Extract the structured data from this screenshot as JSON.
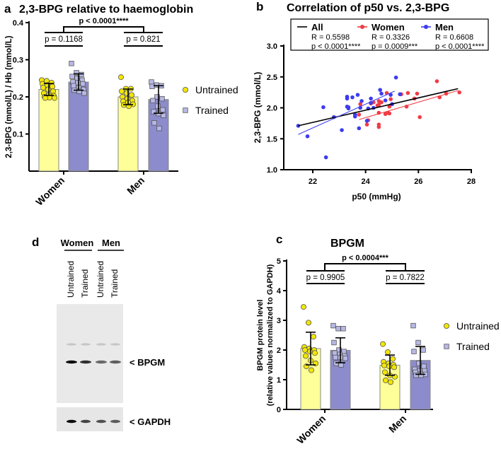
{
  "panels": {
    "a": {
      "letter": "a",
      "title": "2,3-BPG relative to haemoglobin"
    },
    "b": {
      "letter": "b",
      "title": "Correlation of p50 vs. 2,3-BPG"
    },
    "c": {
      "letter": "c"
    },
    "d": {
      "letter": "d",
      "groups": [
        "Women",
        "Men"
      ],
      "lanes": [
        "Untrained",
        "Trained",
        "Untrained",
        "Trained"
      ],
      "band_labels": [
        "< BPGM",
        "< GAPDH"
      ]
    }
  },
  "colors": {
    "untrained": "#ffff99",
    "untrained_dot": "#f2e600",
    "trained": "#8c8ccc",
    "trained_dot": "#b8b8e6",
    "women": "#f03c46",
    "men": "#3c3cf0",
    "all": "#000000"
  },
  "chart_data": [
    {
      "type": "bar",
      "title": "2,3-BPG relative to haemoglobin",
      "ylabel": "2,3-BPG (mmol/L) / Hb (mmol/L)",
      "ylim": [
        0,
        0.4
      ],
      "yticks": [
        "0.1",
        "0.2",
        "0.3",
        "0.4"
      ],
      "categories": [
        "Women",
        "Men"
      ],
      "legend": [
        "Untrained",
        "Trained"
      ],
      "series": [
        {
          "name": "Untrained",
          "means": [
            0.22,
            0.2
          ],
          "sd": [
            0.016,
            0.021
          ],
          "points": [
            [
              0.245,
              0.243,
              0.238,
              0.235,
              0.232,
              0.228,
              0.225,
              0.22,
              0.215,
              0.21,
              0.205,
              0.203,
              0.2,
              0.198,
              0.197,
              0.197
            ],
            [
              0.253,
              0.222,
              0.222,
              0.215,
              0.21,
              0.205,
              0.2,
              0.195,
              0.19,
              0.188,
              0.185,
              0.18,
              0.178,
              0.175
            ]
          ]
        },
        {
          "name": "Trained",
          "means": [
            0.24,
            0.193
          ],
          "sd": [
            0.022,
            0.037
          ],
          "points": [
            [
              0.29,
              0.265,
              0.26,
              0.255,
              0.25,
              0.245,
              0.24,
              0.238,
              0.235,
              0.23,
              0.225,
              0.22,
              0.218,
              0.215,
              0.21
            ],
            [
              0.24,
              0.232,
              0.23,
              0.228,
              0.2,
              0.195,
              0.19,
              0.175,
              0.165,
              0.16,
              0.155,
              0.15,
              0.13,
              0.115
            ]
          ]
        }
      ],
      "annotations": {
        "overall": "p < 0.0001****",
        "within": [
          "p = 0.1168",
          "p = 0.821"
        ]
      }
    },
    {
      "type": "scatter",
      "title": "Correlation of p50 vs. 2,3-BPG",
      "xlabel": "p50 (mmHg)",
      "ylabel": "2,3-BPG (mmol/L)",
      "xlim": [
        21,
        28
      ],
      "ylim": [
        1.0,
        3.0
      ],
      "xticks": [
        "22",
        "24",
        "26",
        "28"
      ],
      "yticks": [
        "1.0",
        "1.5",
        "2.0",
        "2.5",
        "3.0"
      ],
      "legend": [
        {
          "name": "All",
          "r": "R = 0.5598",
          "p": "p < 0.0001****"
        },
        {
          "name": "Women",
          "r": "R = 0.3326",
          "p": "p = 0.0009***"
        },
        {
          "name": "Men",
          "r": "R = 0.6608",
          "p": "p < 0.0001****"
        }
      ],
      "series": [
        {
          "name": "Women",
          "points": [
            [
              23.8,
              2.06
            ],
            [
              23.75,
              1.89
            ],
            [
              24.1,
              1.8
            ],
            [
              24.05,
              1.73
            ],
            [
              24.2,
              2.07
            ],
            [
              24.3,
              2.09
            ],
            [
              24.45,
              2.04
            ],
            [
              24.5,
              2.11
            ],
            [
              24.5,
              2.05
            ],
            [
              24.5,
              1.92
            ],
            [
              24.5,
              1.73
            ],
            [
              24.5,
              1.69
            ],
            [
              24.6,
              2.09
            ],
            [
              24.75,
              1.9
            ],
            [
              24.8,
              2.24
            ],
            [
              24.9,
              1.91
            ],
            [
              24.9,
              2.02
            ],
            [
              24.95,
              2.14
            ],
            [
              24.85,
              1.92
            ],
            [
              25.0,
              2.06
            ],
            [
              25.35,
              2.22
            ],
            [
              25.6,
              2.24
            ],
            [
              25.55,
              2.02
            ],
            [
              25.85,
              2.15
            ],
            [
              25.95,
              2.23
            ],
            [
              26.05,
              1.85
            ],
            [
              26.7,
              2.43
            ],
            [
              26.8,
              2.17
            ],
            [
              27.05,
              2.23
            ],
            [
              27.55,
              2.25
            ]
          ]
        },
        {
          "name": "Men",
          "points": [
            [
              21.45,
              1.71
            ],
            [
              21.8,
              1.54
            ],
            [
              22.4,
              2.01
            ],
            [
              22.5,
              1.2
            ],
            [
              22.8,
              1.85
            ],
            [
              23.1,
              1.64
            ],
            [
              23.3,
              2.15
            ],
            [
              23.3,
              2.18
            ],
            [
              23.3,
              2.02
            ],
            [
              23.35,
              2.01
            ],
            [
              23.35,
              1.99
            ],
            [
              23.5,
              2.17
            ],
            [
              23.6,
              1.86
            ],
            [
              23.6,
              1.89
            ],
            [
              23.7,
              2.21
            ],
            [
              23.75,
              1.67
            ],
            [
              23.8,
              2.0
            ],
            [
              23.85,
              2.11
            ],
            [
              24.05,
              1.79
            ],
            [
              24.1,
              1.99
            ],
            [
              24.2,
              2.15
            ],
            [
              24.2,
              2.08
            ],
            [
              24.3,
              2.0
            ],
            [
              24.55,
              2.29
            ],
            [
              24.6,
              2.23
            ],
            [
              24.75,
              2.12
            ],
            [
              24.95,
              2.21
            ],
            [
              25.0,
              2.06
            ],
            [
              25.15,
              2.49
            ],
            [
              25.3,
              2.22
            ]
          ]
        }
      ],
      "fits": [
        {
          "name": "All",
          "from": [
            21.45,
            1.71
          ],
          "to": [
            27.5,
            2.31
          ]
        },
        {
          "name": "Women",
          "from": [
            23.75,
            1.81
          ],
          "to": [
            27.5,
            2.28
          ]
        },
        {
          "name": "Men",
          "from": [
            21.45,
            1.57
          ],
          "to": [
            25.1,
            2.27
          ]
        }
      ]
    },
    {
      "type": "bar",
      "title": "BPGM",
      "ylabel": [
        "BPGM protein level",
        "(relative values normalized to GAPDH)"
      ],
      "ylim": [
        0,
        5
      ],
      "yticks": [
        "0",
        "1",
        "2",
        "3",
        "4",
        "5"
      ],
      "categories": [
        "Women",
        "Men"
      ],
      "legend": [
        "Untrained",
        "Trained"
      ],
      "series": [
        {
          "name": "Untrained",
          "means": [
            2.05,
            1.49
          ],
          "sd": [
            0.55,
            0.34
          ],
          "points": [
            [
              3.45,
              2.92,
              2.45,
              2.1,
              2.05,
              2.0,
              2.0,
              1.95,
              1.9,
              1.8,
              1.65,
              1.55,
              1.45,
              1.32
            ],
            [
              2.2,
              1.93,
              1.7,
              1.6,
              1.55,
              1.5,
              1.48,
              1.45,
              1.42,
              1.25,
              1.15,
              1.1,
              0.98,
              0.92
            ]
          ]
        },
        {
          "name": "Trained",
          "means": [
            1.99,
            1.65
          ],
          "sd": [
            0.42,
            0.47
          ],
          "points": [
            [
              2.82,
              2.72,
              2.72,
              2.25,
              2.0,
              1.95,
              1.9,
              1.85,
              1.8,
              1.75,
              1.75,
              1.72,
              1.55,
              1.5
            ],
            [
              2.82,
              2.25,
              2.0,
              1.95,
              1.55,
              1.45,
              1.35,
              1.3,
              1.3,
              1.25,
              1.2,
              1.18,
              1.15,
              1.15
            ]
          ]
        }
      ],
      "annotations": {
        "overall": "p < 0.0004***",
        "within": [
          "p = 0.9905",
          "p = 0.7822"
        ]
      }
    }
  ]
}
